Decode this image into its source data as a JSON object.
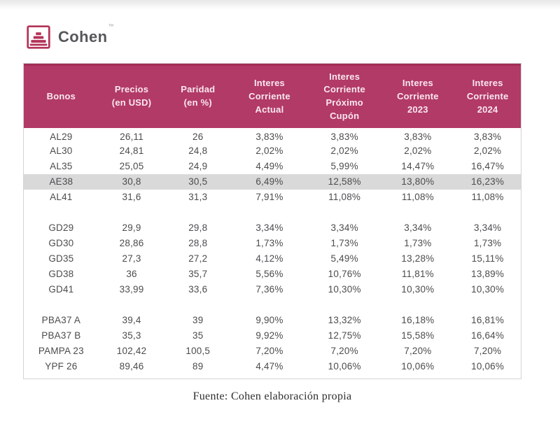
{
  "brand": {
    "name": "Cohen",
    "mark": "™"
  },
  "table": {
    "header_lines": [
      "Bonos",
      "Precios\n(en USD)",
      "Paridad\n(en %)",
      "Interes\nCorriente\nActual",
      "Interes\nCorriente\nPróximo\nCupón",
      "Interes\nCorriente\n2023",
      "Interes\nCorriente\n2024"
    ]
  },
  "footer": {
    "source": "Fuente: Cohen elaboración propia"
  },
  "colors": {
    "header_bg": "#b23a66",
    "header_edge": "#a12e55",
    "header_text": "#f9e7ef",
    "brand_red": "#b43358",
    "body_text": "#4c4c4f",
    "highlight_row": "#d9d9d9",
    "table_border": "#d4d4d4"
  },
  "icons": {
    "logo": "cohen-steps-logo-icon"
  },
  "chart_data": {
    "type": "table",
    "title": "",
    "columns": [
      "Bonos",
      "Precios (en USD)",
      "Paridad (en %)",
      "Interes Corriente Actual",
      "Interes Corriente Próximo Cupón",
      "Interes Corriente 2023",
      "Interes Corriente 2024"
    ],
    "rows": [
      [
        "AL29",
        "26,11",
        "26",
        "3,83%",
        "3,83%",
        "3,83%",
        "3,83%"
      ],
      [
        "AL30",
        "24,81",
        "24,8",
        "2,02%",
        "2,02%",
        "2,02%",
        "2,02%"
      ],
      [
        "AL35",
        "25,05",
        "24,9",
        "4,49%",
        "5,99%",
        "14,47%",
        "16,47%"
      ],
      [
        "AE38",
        "30,8",
        "30,5",
        "6,49%",
        "12,58%",
        "13,80%",
        "16,23%"
      ],
      [
        "AL41",
        "31,6",
        "31,3",
        "7,91%",
        "11,08%",
        "11,08%",
        "11,08%"
      ],
      [
        "GD29",
        "29,9",
        "29,8",
        "3,34%",
        "3,34%",
        "3,34%",
        "3,34%"
      ],
      [
        "GD30",
        "28,86",
        "28,8",
        "1,73%",
        "1,73%",
        "1,73%",
        "1,73%"
      ],
      [
        "GD35",
        "27,3",
        "27,2",
        "4,12%",
        "5,49%",
        "13,28%",
        "15,11%"
      ],
      [
        "GD38",
        "36",
        "35,7",
        "5,56%",
        "10,76%",
        "11,81%",
        "13,89%"
      ],
      [
        "GD41",
        "33,99",
        "33,6",
        "7,36%",
        "10,30%",
        "10,30%",
        "10,30%"
      ],
      [
        "PBA37 A",
        "39,4",
        "39",
        "9,90%",
        "13,32%",
        "16,18%",
        "16,81%"
      ],
      [
        "PBA37 B",
        "35,3",
        "35",
        "9,92%",
        "12,75%",
        "15,58%",
        "16,64%"
      ],
      [
        "PAMPA 23",
        "102,42",
        "100,5",
        "7,20%",
        "7,20%",
        "7,20%",
        "7,20%"
      ],
      [
        "YPF 26",
        "89,46",
        "89",
        "4,47%",
        "10,06%",
        "10,06%",
        "10,06%"
      ]
    ],
    "highlighted_row": "AE38",
    "group_breaks_after": [
      "AL41",
      "GD41"
    ],
    "source": "Fuente: Cohen elaboración propia"
  }
}
